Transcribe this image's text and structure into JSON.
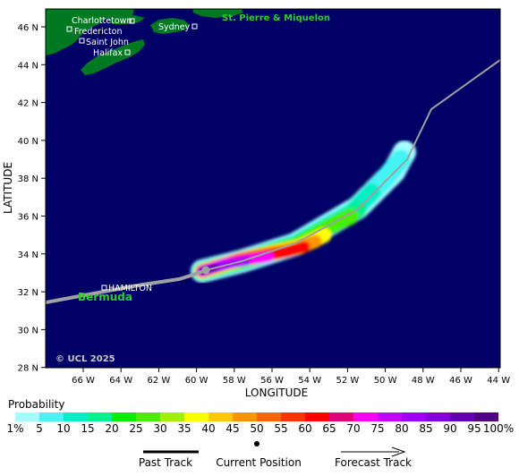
{
  "axes": {
    "xlabel": "LONGITUDE",
    "ylabel": "LATITUDE",
    "lon_ticks": [
      "66 W",
      "64 W",
      "62 W",
      "60 W",
      "58 W",
      "56 W",
      "54 W",
      "52 W",
      "50 W",
      "48 W",
      "46 W",
      "44 W"
    ],
    "lat_ticks": [
      "46 N",
      "44 N",
      "42 N",
      "40 N",
      "38 N",
      "36 N",
      "34 N",
      "32 N",
      "30 N",
      "28 N"
    ]
  },
  "places": {
    "charlottetown": "Charlottetown",
    "fredericton": "Fredericton",
    "saint_john": "Saint John",
    "halifax": "Halifax",
    "sydney": "Sydney",
    "hamilton": "HAMILTON",
    "bermuda": "Bermuda",
    "st_pierre": "St. Pierre & Miquelon"
  },
  "copyright": "© UCL 2025",
  "legend": {
    "title": "Probability",
    "labels": [
      "1%",
      "5",
      "10",
      "15",
      "20",
      "25",
      "30",
      "35",
      "40",
      "45",
      "50",
      "55",
      "60",
      "65",
      "70",
      "75",
      "80",
      "85",
      "90",
      "95",
      "100%"
    ],
    "colors": [
      "#a6ffff",
      "#45f5f5",
      "#00f0c8",
      "#00f28a",
      "#00f000",
      "#46f000",
      "#a0f000",
      "#ffff00",
      "#ffc800",
      "#ff9600",
      "#ff6400",
      "#ff3200",
      "#ff0000",
      "#e6007a",
      "#ff00ff",
      "#c800ff",
      "#a000ff",
      "#8000e0",
      "#6400b4",
      "#500080"
    ]
  },
  "key": {
    "past_track": "Past Track",
    "current_position": "Current Position",
    "forecast_track": "Forecast Track"
  },
  "colors": {
    "ocean": "#000066",
    "land": "#007a22",
    "track": "#a0a0a0"
  }
}
